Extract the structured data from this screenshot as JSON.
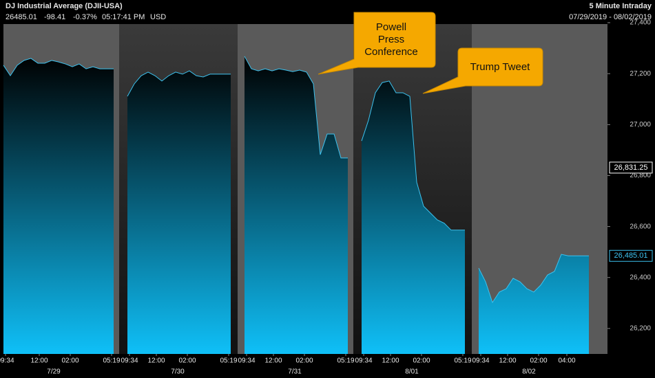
{
  "header": {
    "title": "DJ Industrial Average (DJII-USA)",
    "last": "26485.01",
    "change": "-98.41",
    "change_pct": "-0.37%",
    "time": "05:17:41 PM",
    "currency": "USD",
    "interval": "5 Minute Intraday",
    "date_range": "07/29/2019 - 08/02/2019"
  },
  "chart_data": {
    "type": "area",
    "x": [
      0,
      1,
      2,
      3,
      4,
      5,
      6,
      7,
      8,
      9,
      10,
      11,
      12,
      13,
      14,
      15,
      16,
      17,
      18,
      19,
      20,
      21,
      22,
      23,
      24,
      25,
      26,
      27,
      28,
      29,
      30,
      31,
      32,
      33,
      34,
      35,
      36,
      37,
      38,
      39,
      40,
      41,
      42,
      43,
      44,
      45,
      46,
      47,
      48,
      49,
      50,
      51,
      52,
      53,
      54,
      55,
      56,
      57,
      58,
      59,
      60,
      61,
      62,
      63,
      64,
      65,
      66,
      67,
      68,
      69,
      70,
      71,
      72,
      73,
      74,
      75,
      76,
      77,
      78,
      79,
      80,
      81,
      82,
      83,
      84,
      85
    ],
    "series": [
      {
        "name": "DJII-USA",
        "color": "#3cc3f0",
        "values": [
          27233,
          27192,
          27233,
          27252,
          27260,
          27241,
          27241,
          27252,
          27246,
          27238,
          27227,
          27238,
          27219,
          27227,
          27219,
          27219,
          27219,
          null,
          27111,
          27160,
          27192,
          27206,
          27192,
          27171,
          27192,
          27206,
          27198,
          27211,
          27192,
          27187,
          27198,
          27198,
          27198,
          27198,
          null,
          27268,
          27219,
          27211,
          27219,
          27211,
          27219,
          27214,
          27208,
          27214,
          27206,
          27160,
          26882,
          26963,
          26963,
          26869,
          26869,
          null,
          26936,
          27017,
          27125,
          27165,
          27171,
          27125,
          27125,
          27111,
          26774,
          26680,
          26653,
          26626,
          26613,
          26586,
          26586,
          26586,
          null,
          26437,
          26383,
          26302,
          26343,
          26356,
          26397,
          26383,
          26356,
          26343,
          26370,
          26410,
          26424,
          26491,
          26485,
          26485,
          26485,
          26485.01
        ]
      }
    ],
    "xlim": [
      0,
      87.7
    ],
    "ylim": [
      26100,
      27400
    ],
    "yticks": [
      {
        "value": 27400,
        "label": "27,400"
      },
      {
        "value": 27200,
        "label": "27,200"
      },
      {
        "value": 27000,
        "label": "27,000"
      },
      {
        "value": 26800,
        "label": "26,800"
      },
      {
        "value": 26600,
        "label": "26,600"
      },
      {
        "value": 26400,
        "label": "26,400"
      },
      {
        "value": 26200,
        "label": "26,200"
      }
    ],
    "xticks": [
      {
        "value": 0.3,
        "label": "09:34"
      },
      {
        "value": 5.2,
        "label": "12:00"
      },
      {
        "value": 9.7,
        "label": "02:00"
      },
      {
        "value": 15.7,
        "label": "05:19"
      },
      {
        "value": 18.3,
        "label": "09:34"
      },
      {
        "value": 22.2,
        "label": "12:00"
      },
      {
        "value": 26.7,
        "label": "02:00"
      },
      {
        "value": 32.7,
        "label": "05:19"
      },
      {
        "value": 35.3,
        "label": "09:34"
      },
      {
        "value": 39.2,
        "label": "12:00"
      },
      {
        "value": 43.7,
        "label": "02:00"
      },
      {
        "value": 49.7,
        "label": "05:19"
      },
      {
        "value": 52.3,
        "label": "09:34"
      },
      {
        "value": 56.2,
        "label": "12:00"
      },
      {
        "value": 60.7,
        "label": "02:00"
      },
      {
        "value": 66.7,
        "label": "05:19"
      },
      {
        "value": 69.3,
        "label": "09:34"
      },
      {
        "value": 73.2,
        "label": "12:00"
      },
      {
        "value": 77.7,
        "label": "02:00"
      },
      {
        "value": 81.8,
        "label": "04:00"
      }
    ],
    "date_ticks": [
      {
        "value": 7.3,
        "label": "7/29"
      },
      {
        "value": 25.3,
        "label": "7/30"
      },
      {
        "value": 42.3,
        "label": "7/31"
      },
      {
        "value": 59.3,
        "label": "8/01"
      },
      {
        "value": 76.3,
        "label": "8/02"
      }
    ],
    "price_markers": [
      {
        "value": 26831.25,
        "label": "26,831.25",
        "style": "white"
      },
      {
        "value": 26485.01,
        "label": "26,485.01",
        "style": "blue"
      }
    ],
    "annotations": [
      {
        "text": "Powell Press Conference"
      },
      {
        "text": "Trump Tweet"
      }
    ]
  }
}
